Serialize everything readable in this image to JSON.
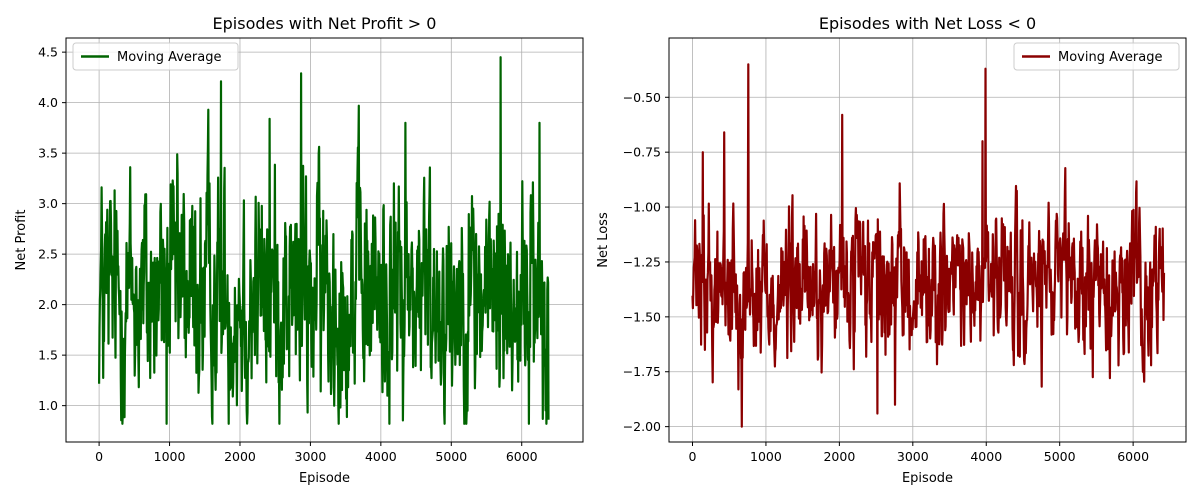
{
  "chart_data": [
    {
      "type": "line",
      "title": "Episodes with Net Profit > 0",
      "xlabel": "Episode",
      "ylabel": "Net Profit",
      "xlim": [
        -470,
        6870
      ],
      "ylim": [
        0.64,
        4.64
      ],
      "xticks": [
        0,
        1000,
        2000,
        3000,
        4000,
        5000,
        6000
      ],
      "yticks": [
        1.0,
        1.5,
        2.0,
        2.5,
        3.0,
        3.5,
        4.0,
        4.5
      ],
      "ytick_labels": [
        "1.0",
        "1.5",
        "2.0",
        "2.5",
        "3.0",
        "3.5",
        "4.0",
        "4.5"
      ],
      "grid": true,
      "legend_position": "top-left",
      "series": [
        {
          "name": "Moving Average",
          "color": "#006400",
          "x_start": 0,
          "x_end": 6380,
          "n_points": 1100,
          "baseline": 2.1,
          "std": 0.6,
          "min": 0.82,
          "max": 4.45,
          "peaks": [
            [
              1730,
              4.21
            ],
            [
              2870,
              4.29
            ],
            [
              5700,
              4.45
            ],
            [
              4350,
              3.8
            ],
            [
              6250,
              3.8
            ],
            [
              1550,
              3.93
            ],
            [
              2420,
              3.84
            ],
            [
              960,
              0.82
            ]
          ],
          "end_value": 0.86
        }
      ]
    },
    {
      "type": "line",
      "title": "Episodes with Net Loss < 0",
      "xlabel": "Episode",
      "ylabel": "Net Loss",
      "xlim": [
        -320,
        6720
      ],
      "ylim": [
        -2.07,
        -0.23
      ],
      "xticks": [
        0,
        1000,
        2000,
        3000,
        4000,
        5000,
        6000
      ],
      "yticks": [
        -2.0,
        -1.75,
        -1.5,
        -1.25,
        -1.0,
        -0.75,
        -0.5
      ],
      "ytick_labels": [
        "−2.00",
        "−1.75",
        "−1.50",
        "−1.25",
        "−1.00",
        "−0.75",
        "−0.50"
      ],
      "grid": true,
      "legend_position": "top-right",
      "series": [
        {
          "name": "Moving Average",
          "color": "#8b0000",
          "x_start": 0,
          "x_end": 6420,
          "n_points": 1100,
          "baseline": -1.37,
          "std": 0.17,
          "min": -2.0,
          "max": -0.35,
          "peaks": [
            [
              760,
              -0.35
            ],
            [
              3990,
              -0.37
            ],
            [
              2040,
              -0.58
            ],
            [
              3950,
              -0.7
            ],
            [
              140,
              -0.75
            ],
            [
              430,
              -0.66
            ]
          ],
          "troughs": [
            [
              670,
              -2.0
            ],
            [
              2520,
              -1.94
            ],
            [
              2760,
              -1.9
            ]
          ],
          "end_value": -1.3
        }
      ]
    }
  ]
}
